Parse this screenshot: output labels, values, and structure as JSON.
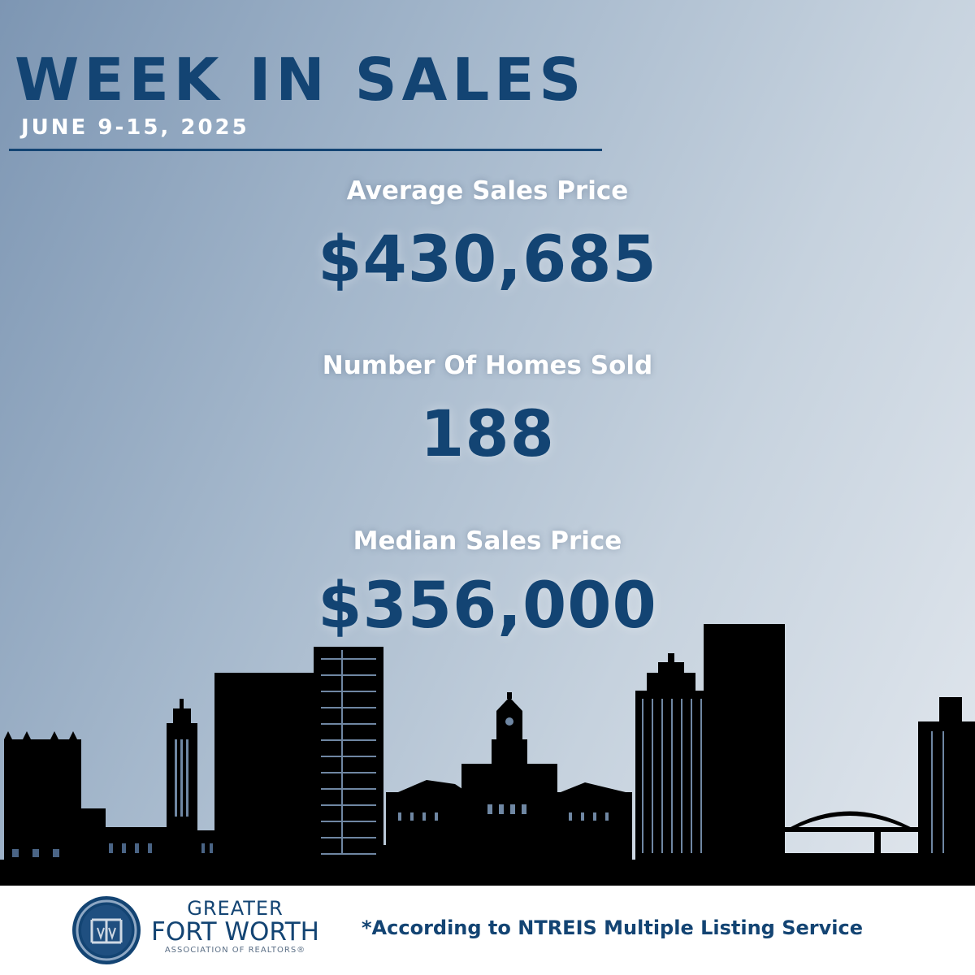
{
  "header": {
    "title": "WEEK IN SALES",
    "date_range": "JUNE 9-15, 2025"
  },
  "stats": [
    {
      "label": "Average Sales Price",
      "value": "$430,685"
    },
    {
      "label": "Number Of Homes Sold",
      "value": "188"
    },
    {
      "label": "Median Sales Price",
      "value": "$356,000"
    }
  ],
  "footer": {
    "logo": {
      "mark": "GFW",
      "line1": "GREATER",
      "line2": "FORT WORTH",
      "line3": "ASSOCIATION OF REALTORS®"
    },
    "disclaimer": "*According to NTREIS Multiple Listing Service"
  },
  "colors": {
    "primary": "#134473",
    "white": "#ffffff",
    "silhouette": "#000000"
  },
  "icons": {
    "skyline": "fort-worth-skyline-silhouette",
    "logo": "gfw-circular-emblem"
  }
}
